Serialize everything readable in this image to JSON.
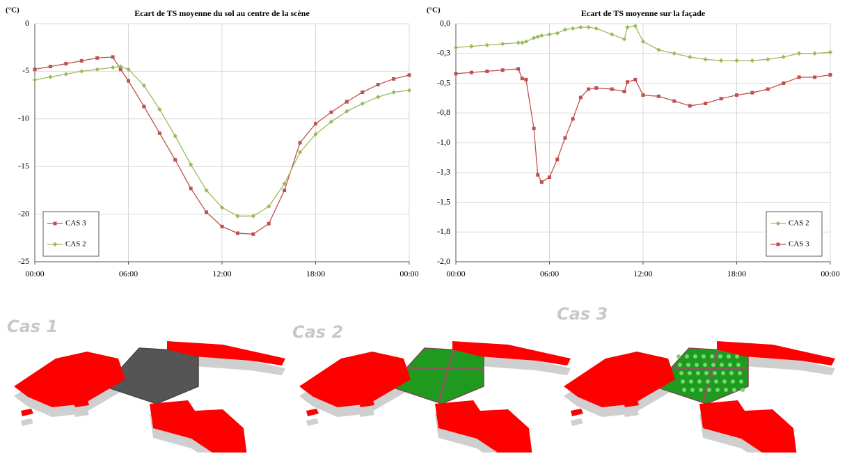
{
  "chart_data": [
    {
      "type": "line",
      "title": "Ecart de TS moyenne du sol au centre de la scène",
      "ylabel": "(°C)",
      "x": [
        0,
        1,
        2,
        3,
        4,
        5,
        5.5,
        6,
        7,
        8,
        9,
        10,
        11,
        12,
        13,
        14,
        15,
        16,
        17,
        18,
        19,
        20,
        21,
        22,
        23,
        24
      ],
      "xlim": [
        0,
        24
      ],
      "xticks": [
        {
          "value": 0,
          "label": "00:00"
        },
        {
          "value": 6,
          "label": "06:00"
        },
        {
          "value": 12,
          "label": "12:00"
        },
        {
          "value": 18,
          "label": "18:00"
        },
        {
          "value": 24,
          "label": "00:00"
        }
      ],
      "ylim": [
        -25,
        0
      ],
      "yticks": [
        -25,
        -20,
        -15,
        -10,
        -5,
        0
      ],
      "grid": true,
      "legend": "bottom-left",
      "series": [
        {
          "name": "CAS 3",
          "color": "#c0504d",
          "marker": "square",
          "values": [
            -4.8,
            -4.5,
            -4.2,
            -3.9,
            -3.6,
            -3.5,
            -4.8,
            -6.0,
            -8.7,
            -11.5,
            -14.3,
            -17.3,
            -19.8,
            -21.3,
            -22.0,
            -22.1,
            -21.0,
            -17.5,
            -12.5,
            -10.5,
            -9.3,
            -8.2,
            -7.2,
            -6.4,
            -5.8,
            -5.4
          ]
        },
        {
          "name": "CAS 2",
          "color": "#9bbb59",
          "marker": "diamond",
          "values": [
            -5.9,
            -5.6,
            -5.3,
            -5.0,
            -4.8,
            -4.6,
            -4.5,
            -4.8,
            -6.5,
            -9.0,
            -11.8,
            -14.8,
            -17.5,
            -19.3,
            -20.2,
            -20.2,
            -19.2,
            -16.8,
            -13.5,
            -11.6,
            -10.3,
            -9.2,
            -8.4,
            -7.7,
            -7.2,
            -7.0
          ]
        }
      ]
    },
    {
      "type": "line",
      "title": "Ecart de TS moyenne sur la façade",
      "ylabel": "(°C)",
      "x": [
        0,
        1,
        2,
        3,
        4,
        4.25,
        4.5,
        5,
        5.25,
        5.5,
        6,
        6.5,
        7,
        7.5,
        8,
        8.5,
        9,
        10,
        10.8,
        11,
        11.5,
        12,
        13,
        14,
        15,
        16,
        17,
        18,
        19,
        20,
        21,
        22,
        23,
        24
      ],
      "xlim": [
        0,
        24
      ],
      "xticks": [
        {
          "value": 0,
          "label": "00:00"
        },
        {
          "value": 6,
          "label": "06:00"
        },
        {
          "value": 12,
          "label": "12:00"
        },
        {
          "value": 18,
          "label": "18:00"
        },
        {
          "value": 24,
          "label": "00:00"
        }
      ],
      "ylim": [
        -2,
        0
      ],
      "yticks": [
        {
          "value": -2,
          "label": "-2,0"
        },
        {
          "value": -1.75,
          "label": "-1,8"
        },
        {
          "value": -1.5,
          "label": "-1,5"
        },
        {
          "value": -1.25,
          "label": "-1,3"
        },
        {
          "value": -1,
          "label": "-1,0"
        },
        {
          "value": -0.75,
          "label": "-0,8"
        },
        {
          "value": -0.5,
          "label": "-0,5"
        },
        {
          "value": -0.25,
          "label": "-0,3"
        },
        {
          "value": 0,
          "label": "0,0"
        }
      ],
      "grid": true,
      "legend": "bottom-right",
      "series": [
        {
          "name": "CAS 2",
          "color": "#9bbb59",
          "marker": "diamond",
          "values": [
            -0.2,
            -0.19,
            -0.18,
            -0.17,
            -0.16,
            -0.16,
            -0.15,
            -0.12,
            -0.11,
            -0.1,
            -0.09,
            -0.08,
            -0.05,
            -0.04,
            -0.03,
            -0.03,
            -0.04,
            -0.09,
            -0.13,
            -0.03,
            -0.02,
            -0.15,
            -0.22,
            -0.25,
            -0.28,
            -0.3,
            -0.31,
            -0.31,
            -0.31,
            -0.3,
            -0.28,
            -0.25,
            -0.25,
            -0.24
          ]
        },
        {
          "name": "CAS 3",
          "color": "#c0504d",
          "marker": "square",
          "values": [
            -0.42,
            -0.41,
            -0.4,
            -0.39,
            -0.38,
            -0.46,
            -0.47,
            -0.88,
            -1.27,
            -1.33,
            -1.29,
            -1.14,
            -0.96,
            -0.8,
            -0.62,
            -0.55,
            -0.54,
            -0.55,
            -0.57,
            -0.49,
            -0.47,
            -0.6,
            -0.61,
            -0.65,
            -0.69,
            -0.67,
            -0.63,
            -0.6,
            -0.58,
            -0.55,
            -0.5,
            -0.45,
            -0.45,
            -0.43
          ]
        }
      ]
    }
  ],
  "scenes": [
    "Cas 1",
    "Cas 2",
    "Cas 3"
  ]
}
